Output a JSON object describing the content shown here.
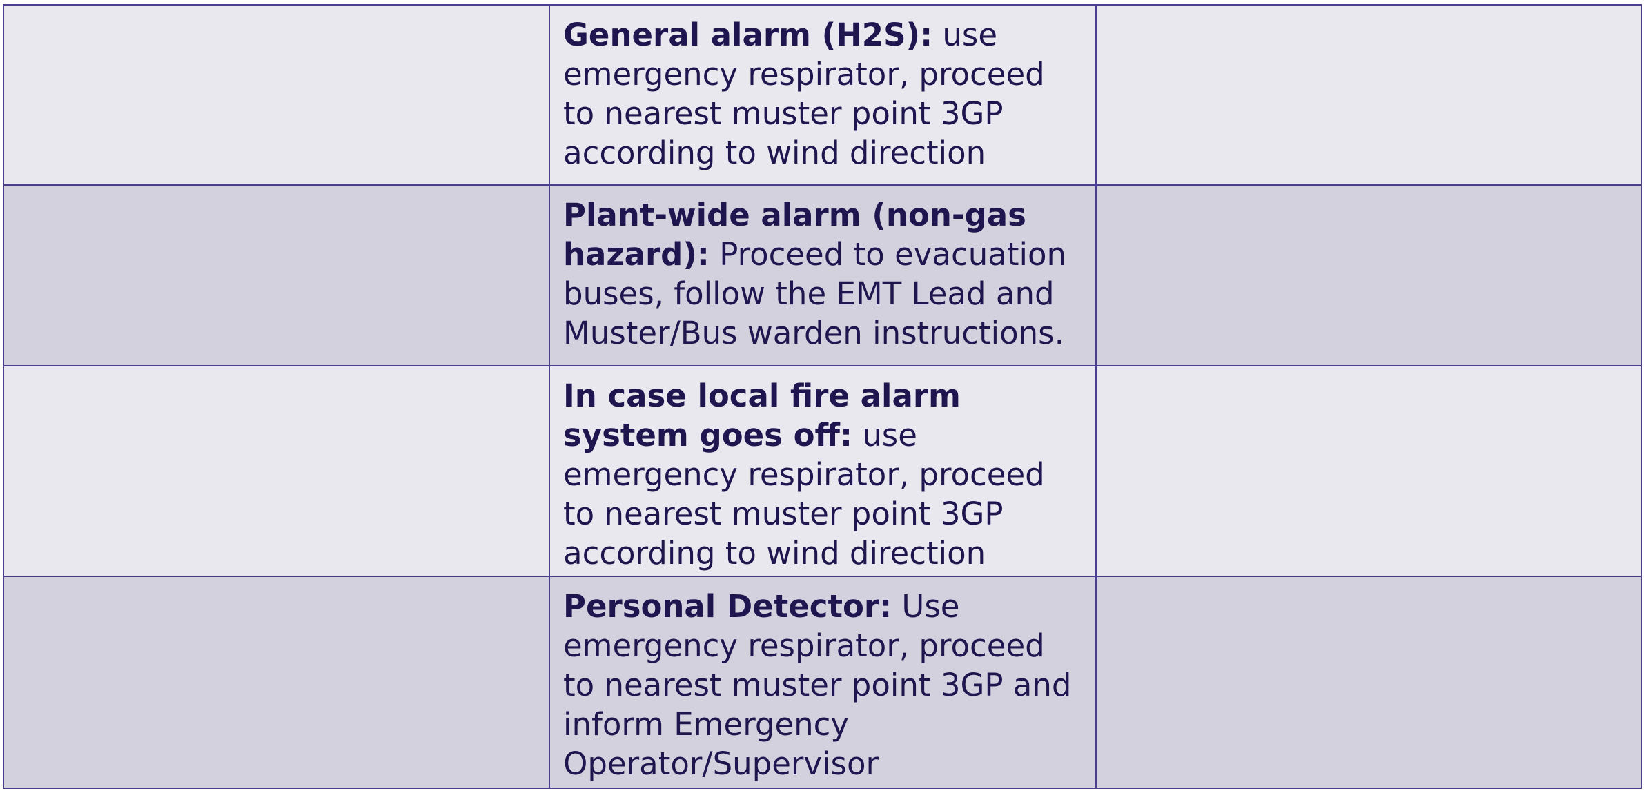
{
  "table": {
    "rows": [
      {
        "left": "",
        "middle_bold": "General alarm (H2S):",
        "middle_text": " use emergency respirator, proceed to nearest muster point 3GP according to wind direction",
        "right": ""
      },
      {
        "left": "",
        "middle_bold": "Plant-wide alarm (non-gas hazard):",
        "middle_text": " Proceed to evacuation buses, follow the EMT Lead and Muster/Bus warden instructions.",
        "right": ""
      },
      {
        "left": "",
        "middle_bold": "In case local fire alarm system goes off:",
        "middle_text": " use emergency respirator, proceed to nearest muster point 3GP according to wind direction",
        "right": ""
      },
      {
        "left": "",
        "middle_bold": "Personal Detector:",
        "middle_text": " Use emergency respirator, proceed to nearest muster point 3GP and inform Emergency Operator/Supervisor",
        "right": ""
      }
    ]
  },
  "colors": {
    "text": "#1f1650",
    "border": "#4a3f8c",
    "row_light": "#e9e8ee",
    "row_dark": "#d3d1de"
  }
}
